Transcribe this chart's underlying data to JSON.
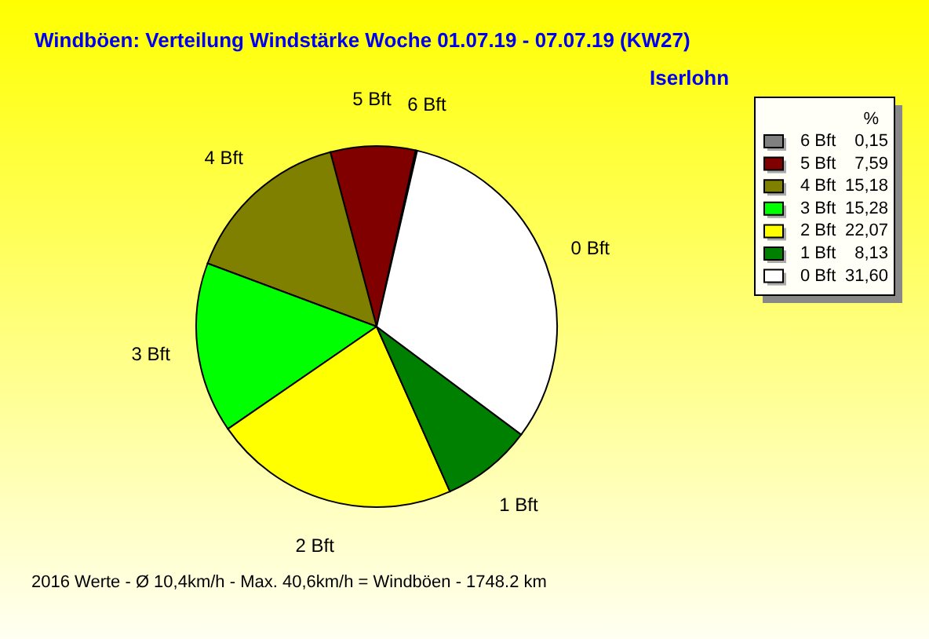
{
  "chart_data": {
    "type": "pie",
    "title": "Windböen: Verteilung Windstärke Woche 01.07.19 - 07.07.19 (KW27)",
    "subtitle": "Iserlohn",
    "legend_title": "%",
    "categories": [
      "6 Bft",
      "5 Bft",
      "4 Bft",
      "3 Bft",
      "2 Bft",
      "1 Bft",
      "0 Bft"
    ],
    "values": [
      0.15,
      7.59,
      15.18,
      15.28,
      22.07,
      8.13,
      31.6
    ],
    "colors": [
      "#808080",
      "#800000",
      "#808000",
      "#00ff00",
      "#ffff00",
      "#008000",
      "#ffffff"
    ],
    "value_labels": [
      "0,15",
      "7,59",
      "15,18",
      "15,28",
      "22,07",
      "8,13",
      "31,60"
    ],
    "legend": "top right",
    "annotations": [
      "2016 Werte - Ø 10,4km/h - Max. 40,6km/h = Windböen - 1748.2 km"
    ]
  }
}
